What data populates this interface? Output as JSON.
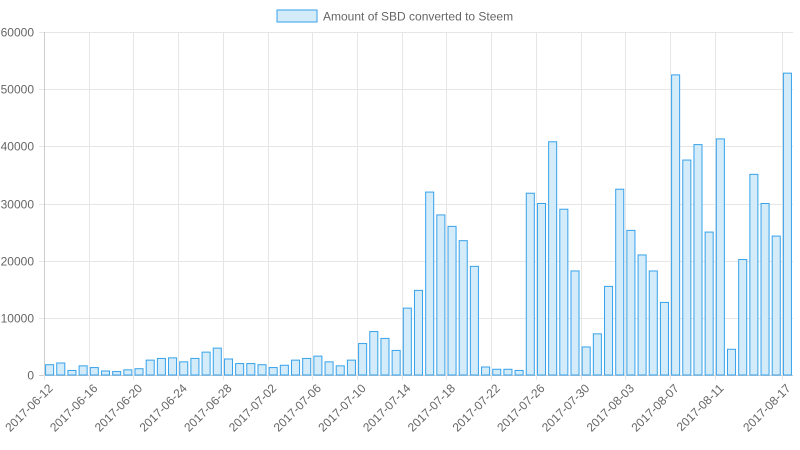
{
  "colors": {
    "bar_fill": "#d4ecf9",
    "bar_stroke": "#36a2eb",
    "grid": "#e6e6e6",
    "axis": "#cccccc",
    "text": "#666666"
  },
  "chart_data": {
    "type": "bar",
    "legend": {
      "position": "top",
      "label": "Amount of SBD converted to Steem"
    },
    "grid": true,
    "ylim": [
      0,
      60000
    ],
    "yticks": [
      0,
      10000,
      20000,
      30000,
      40000,
      50000,
      60000
    ],
    "xtick_labels": [
      "2017-06-12",
      "2017-06-16",
      "2017-06-20",
      "2017-06-24",
      "2017-06-28",
      "2017-07-02",
      "2017-07-06",
      "2017-07-10",
      "2017-07-14",
      "2017-07-18",
      "2017-07-22",
      "2017-07-26",
      "2017-07-30",
      "2017-08-03",
      "2017-08-07",
      "2017-08-11",
      "2017-08-17"
    ],
    "categories": [
      "2017-06-12",
      "2017-06-13",
      "2017-06-14",
      "2017-06-15",
      "2017-06-16",
      "2017-06-17",
      "2017-06-18",
      "2017-06-19",
      "2017-06-20",
      "2017-06-21",
      "2017-06-22",
      "2017-06-23",
      "2017-06-24",
      "2017-06-25",
      "2017-06-26",
      "2017-06-27",
      "2017-06-28",
      "2017-06-29",
      "2017-06-30",
      "2017-07-01",
      "2017-07-02",
      "2017-07-03",
      "2017-07-04",
      "2017-07-05",
      "2017-07-06",
      "2017-07-07",
      "2017-07-08",
      "2017-07-09",
      "2017-07-10",
      "2017-07-11",
      "2017-07-12",
      "2017-07-13",
      "2017-07-14",
      "2017-07-15",
      "2017-07-16",
      "2017-07-17",
      "2017-07-18",
      "2017-07-19",
      "2017-07-20",
      "2017-07-21",
      "2017-07-22",
      "2017-07-23",
      "2017-07-24",
      "2017-07-25",
      "2017-07-26",
      "2017-07-27",
      "2017-07-28",
      "2017-07-29",
      "2017-07-30",
      "2017-07-31",
      "2017-08-01",
      "2017-08-02",
      "2017-08-03",
      "2017-08-04",
      "2017-08-05",
      "2017-08-06",
      "2017-08-07",
      "2017-08-08",
      "2017-08-09",
      "2017-08-10",
      "2017-08-11",
      "2017-08-12",
      "2017-08-13",
      "2017-08-14",
      "2017-08-15",
      "2017-08-16",
      "2017-08-17"
    ],
    "values": [
      1800,
      2100,
      800,
      1600,
      1300,
      700,
      600,
      900,
      1100,
      2600,
      2900,
      3000,
      2300,
      2900,
      4000,
      4700,
      2800,
      2000,
      2000,
      1800,
      1300,
      1700,
      2600,
      2900,
      3300,
      2300,
      1600,
      2600,
      5500,
      7600,
      6400,
      4300,
      11700,
      14800,
      32000,
      28000,
      26000,
      23500,
      19000,
      1400,
      1000,
      1000,
      800,
      31800,
      30000,
      40800,
      29000,
      18200,
      4900,
      7200,
      15500,
      32500,
      25300,
      21000,
      18200,
      12700,
      52500,
      37600,
      40300,
      25000,
      41300,
      4500,
      20200,
      35100,
      30000,
      24300,
      52800
    ]
  }
}
